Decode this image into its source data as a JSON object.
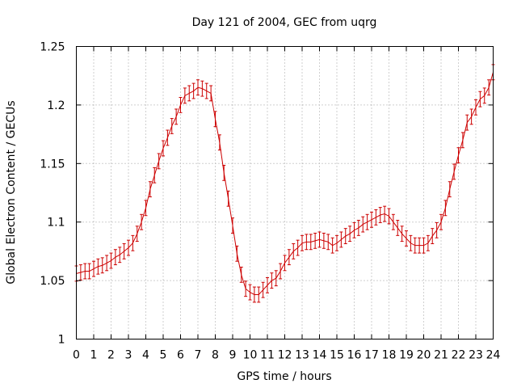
{
  "chart_data": {
    "type": "line",
    "title": "Day 121 of 2004, GEC from uqrg",
    "xlabel": "GPS time / hours",
    "ylabel": "Global Electron Content / GECUs",
    "xlim": [
      0,
      24
    ],
    "ylim": [
      1,
      1.25
    ],
    "xticks": [
      "0",
      "1",
      "2",
      "3",
      "4",
      "5",
      "6",
      "7",
      "8",
      "9",
      "10",
      "11",
      "12",
      "13",
      "14",
      "15",
      "16",
      "17",
      "18",
      "19",
      "20",
      "21",
      "22",
      "23",
      "24"
    ],
    "yticks": [
      "1",
      "1.05",
      "1.1",
      "1.15",
      "1.2",
      "1.25"
    ],
    "grid": true,
    "error_half_width": 0.0065,
    "series_color": "#cc0000",
    "series": [
      {
        "x": [
          0,
          0.25,
          0.5,
          0.75,
          1,
          1.25,
          1.5,
          1.75,
          2,
          2.25,
          2.5,
          2.75,
          3,
          3.25,
          3.5,
          3.75,
          4,
          4.25,
          4.5,
          4.75,
          5,
          5.25,
          5.5,
          5.75,
          6,
          6.25,
          6.5,
          6.75,
          7,
          7.25,
          7.5,
          7.75,
          8,
          8.25,
          8.5,
          8.75,
          9,
          9.25,
          9.5,
          9.75,
          10,
          10.25,
          10.5,
          10.75,
          11,
          11.25,
          11.5,
          11.75,
          12,
          12.25,
          12.5,
          12.75,
          13,
          13.25,
          13.5,
          13.75,
          14,
          14.25,
          14.5,
          14.75,
          15,
          15.25,
          15.5,
          15.75,
          16,
          16.25,
          16.5,
          16.75,
          17,
          17.25,
          17.5,
          17.75,
          18,
          18.25,
          18.5,
          18.75,
          19,
          19.25,
          19.5,
          19.75,
          20,
          20.25,
          20.5,
          20.75,
          21,
          21.25,
          21.5,
          21.75,
          22,
          22.25,
          22.5,
          22.75,
          23,
          23.25,
          23.5,
          23.75,
          24
        ],
        "y": [
          1.056,
          1.057,
          1.058,
          1.058,
          1.06,
          1.062,
          1.063,
          1.065,
          1.067,
          1.07,
          1.072,
          1.075,
          1.078,
          1.082,
          1.09,
          1.1,
          1.112,
          1.128,
          1.14,
          1.152,
          1.163,
          1.172,
          1.182,
          1.19,
          1.2,
          1.208,
          1.21,
          1.212,
          1.215,
          1.214,
          1.212,
          1.21,
          1.188,
          1.168,
          1.142,
          1.12,
          1.097,
          1.073,
          1.055,
          1.043,
          1.04,
          1.038,
          1.038,
          1.042,
          1.046,
          1.05,
          1.052,
          1.058,
          1.065,
          1.07,
          1.075,
          1.078,
          1.082,
          1.083,
          1.083,
          1.084,
          1.085,
          1.084,
          1.083,
          1.08,
          1.082,
          1.085,
          1.088,
          1.09,
          1.093,
          1.095,
          1.098,
          1.1,
          1.102,
          1.104,
          1.106,
          1.107,
          1.105,
          1.1,
          1.095,
          1.09,
          1.086,
          1.082,
          1.08,
          1.08,
          1.08,
          1.082,
          1.088,
          1.093,
          1.1,
          1.112,
          1.128,
          1.143,
          1.157,
          1.17,
          1.185,
          1.19,
          1.198,
          1.205,
          1.208,
          1.215,
          1.228
        ]
      }
    ]
  }
}
